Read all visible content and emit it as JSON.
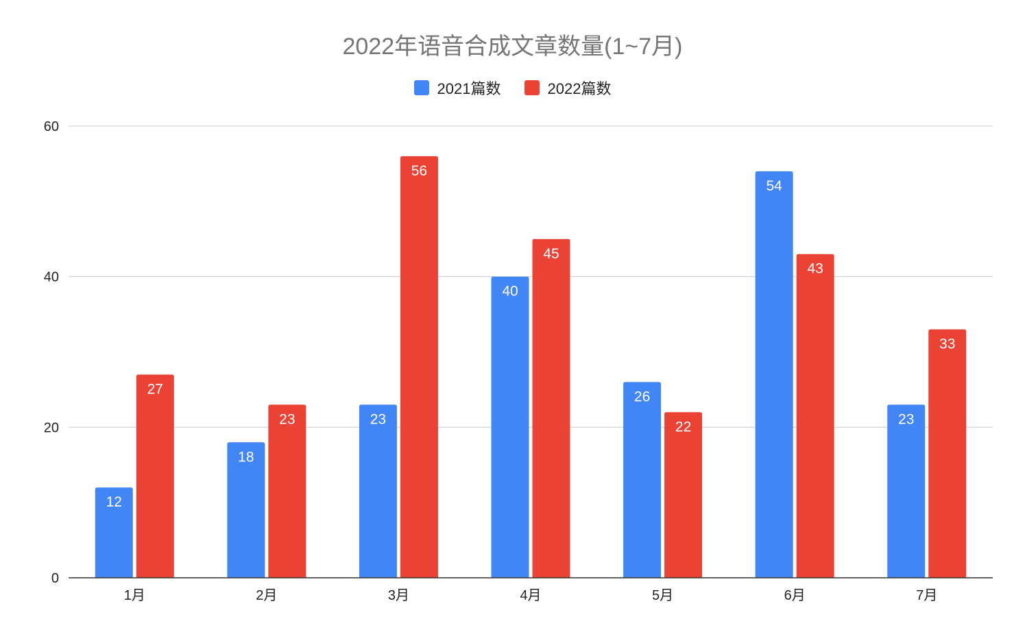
{
  "chart_data": {
    "type": "bar",
    "title": "2022年语音合成文章数量(1~7月)",
    "categories": [
      "1月",
      "2月",
      "3月",
      "4月",
      "5月",
      "6月",
      "7月"
    ],
    "series": [
      {
        "name": "2021篇数",
        "color": "#4285f4",
        "values": [
          12,
          18,
          23,
          40,
          26,
          54,
          23
        ]
      },
      {
        "name": "2022篇数",
        "color": "#ea4335",
        "values": [
          27,
          23,
          56,
          45,
          22,
          43,
          33
        ]
      }
    ],
    "ylim": [
      0,
      60
    ],
    "yticks": [
      0,
      20,
      40,
      60
    ],
    "ytick_labels": [
      "0",
      "20",
      "40",
      "60"
    ],
    "xlabel": "",
    "ylabel": "",
    "grid": true,
    "legend_position": "top-center",
    "data_labels": true
  }
}
